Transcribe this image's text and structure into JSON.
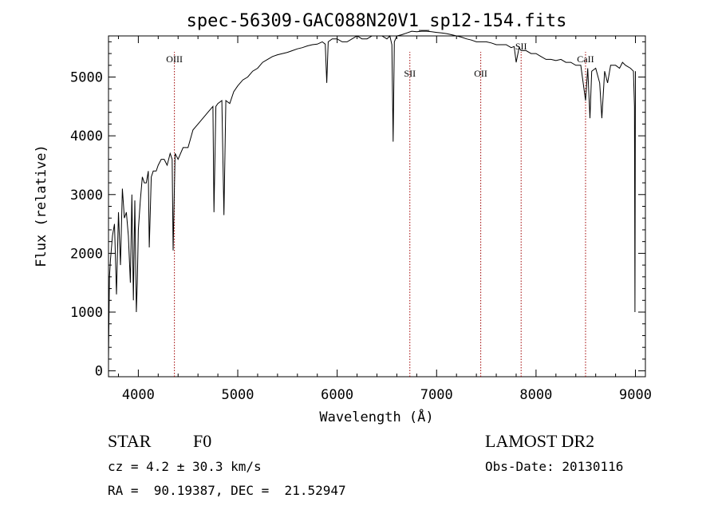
{
  "chart_data": {
    "type": "line",
    "title": "spec-56309-GAC088N20V1_sp12-154.fits",
    "xlabel": "Wavelength (Å)",
    "ylabel": "Flux (relative)",
    "xlim": [
      3700,
      9100
    ],
    "ylim": [
      -100,
      5700
    ],
    "x_ticks": [
      4000,
      5000,
      6000,
      7000,
      8000,
      9000
    ],
    "x_tick_labels": [
      "4000",
      "5000",
      "6000",
      "7000",
      "8000",
      "9000"
    ],
    "y_ticks": [
      0,
      1000,
      2000,
      3000,
      4000,
      5000
    ],
    "y_tick_labels": [
      "0",
      "1000",
      "2000",
      "3000",
      "4000",
      "5000"
    ],
    "line_markers": [
      {
        "label": "OIII",
        "x": 4363
      },
      {
        "label": "SII",
        "x": 6731
      },
      {
        "label": "OII",
        "x": 7444
      },
      {
        "label": "SII",
        "x": 7850
      },
      {
        "label": "CaII",
        "x": 8498
      }
    ],
    "series": [
      {
        "name": "flux",
        "x": [
          3700,
          3710,
          3720,
          3740,
          3760,
          3780,
          3800,
          3820,
          3840,
          3860,
          3880,
          3900,
          3920,
          3935,
          3950,
          3965,
          3980,
          3990,
          4000,
          4020,
          4040,
          4060,
          4080,
          4100,
          4110,
          4130,
          4150,
          4180,
          4200,
          4230,
          4260,
          4290,
          4320,
          4340,
          4350,
          4370,
          4400,
          4450,
          4500,
          4550,
          4600,
          4650,
          4700,
          4750,
          4761,
          4780,
          4800,
          4840,
          4861,
          4880,
          4920,
          4960,
          5000,
          5050,
          5100,
          5150,
          5200,
          5250,
          5300,
          5350,
          5400,
          5450,
          5500,
          5550,
          5600,
          5650,
          5700,
          5750,
          5800,
          5850,
          5880,
          5895,
          5910,
          5950,
          6000,
          6050,
          6100,
          6150,
          6200,
          6250,
          6300,
          6350,
          6400,
          6450,
          6500,
          6530,
          6550,
          6563,
          6575,
          6600,
          6650,
          6700,
          6750,
          6800,
          6850,
          6900,
          6950,
          7000,
          7050,
          7100,
          7150,
          7200,
          7250,
          7300,
          7350,
          7400,
          7450,
          7500,
          7550,
          7600,
          7650,
          7700,
          7750,
          7780,
          7800,
          7830,
          7850,
          7900,
          7950,
          8000,
          8050,
          8100,
          8150,
          8200,
          8250,
          8300,
          8350,
          8400,
          8450,
          8498,
          8520,
          8542,
          8560,
          8600,
          8640,
          8662,
          8690,
          8720,
          8750,
          8800,
          8840,
          8870,
          8900,
          8950,
          8980,
          8990,
          8995,
          9000
        ],
        "values": [
          200,
          1600,
          1900,
          2300,
          2500,
          1300,
          2700,
          1800,
          3100,
          2600,
          2700,
          2300,
          1500,
          3000,
          1200,
          2900,
          1000,
          1500,
          2400,
          2900,
          3300,
          3200,
          3200,
          3400,
          2100,
          3300,
          3400,
          3400,
          3500,
          3600,
          3600,
          3500,
          3700,
          3600,
          2050,
          3700,
          3600,
          3800,
          3800,
          4100,
          4200,
          4300,
          4400,
          4500,
          2700,
          4500,
          4550,
          4600,
          2650,
          4600,
          4550,
          4750,
          4850,
          4950,
          5000,
          5100,
          5150,
          5250,
          5300,
          5350,
          5380,
          5400,
          5420,
          5450,
          5480,
          5500,
          5530,
          5550,
          5560,
          5600,
          5560,
          4900,
          5600,
          5650,
          5650,
          5600,
          5600,
          5650,
          5700,
          5650,
          5650,
          5700,
          5700,
          5700,
          5650,
          5700,
          5550,
          3900,
          5600,
          5700,
          5720,
          5750,
          5780,
          5770,
          5780,
          5780,
          5770,
          5760,
          5750,
          5740,
          5720,
          5700,
          5680,
          5650,
          5630,
          5600,
          5600,
          5600,
          5580,
          5550,
          5550,
          5550,
          5500,
          5520,
          5250,
          5500,
          5450,
          5450,
          5400,
          5400,
          5350,
          5300,
          5300,
          5280,
          5300,
          5250,
          5250,
          5200,
          5200,
          4600,
          5150,
          4300,
          5100,
          5150,
          4900,
          4300,
          5100,
          4900,
          5200,
          5200,
          5150,
          5250,
          5200,
          5150,
          5100,
          4500,
          1000,
          5100
        ]
      }
    ]
  },
  "info": {
    "object_class": "STAR",
    "subclass": "F0",
    "redshift": "cz = 4.2 ± 30.3 km/s",
    "coords": "RA =  90.19387, DEC =  21.52947",
    "survey": "LAMOST DR2",
    "obs_date": "Obs-Date: 20130116"
  }
}
